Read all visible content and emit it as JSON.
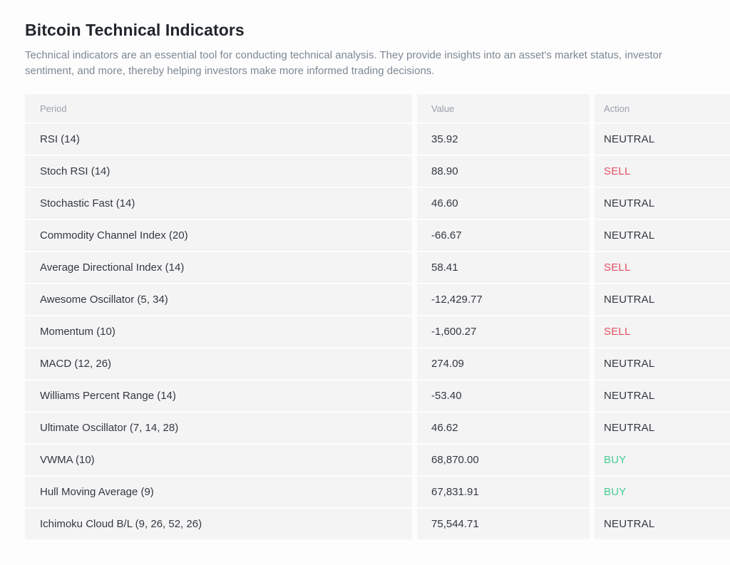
{
  "page": {
    "title": "Bitcoin Technical Indicators",
    "description": "Technical indicators are an essential tool for conducting technical analysis. They provide insights into an asset's market status, investor sentiment, and more, thereby helping investors make more informed trading decisions."
  },
  "table": {
    "columns": [
      "Period",
      "Value",
      "Action"
    ],
    "rows": [
      {
        "period": "RSI (14)",
        "value": "35.92",
        "action": "NEUTRAL"
      },
      {
        "period": "Stoch RSI (14)",
        "value": "88.90",
        "action": "SELL"
      },
      {
        "period": "Stochastic Fast (14)",
        "value": "46.60",
        "action": "NEUTRAL"
      },
      {
        "period": "Commodity Channel Index (20)",
        "value": "-66.67",
        "action": "NEUTRAL"
      },
      {
        "period": "Average Directional Index (14)",
        "value": "58.41",
        "action": "SELL"
      },
      {
        "period": "Awesome Oscillator (5, 34)",
        "value": "-12,429.77",
        "action": "NEUTRAL"
      },
      {
        "period": "Momentum (10)",
        "value": "-1,600.27",
        "action": "SELL"
      },
      {
        "period": "MACD (12, 26)",
        "value": "274.09",
        "action": "NEUTRAL"
      },
      {
        "period": "Williams Percent Range (14)",
        "value": "-53.40",
        "action": "NEUTRAL"
      },
      {
        "period": "Ultimate Oscillator (7, 14, 28)",
        "value": "46.62",
        "action": "NEUTRAL"
      },
      {
        "period": "VWMA (10)",
        "value": "68,870.00",
        "action": "BUY"
      },
      {
        "period": "Hull Moving Average (9)",
        "value": "67,831.91",
        "action": "BUY"
      },
      {
        "period": "Ichimoku Cloud B/L (9, 26, 52, 26)",
        "value": "75,544.71",
        "action": "NEUTRAL"
      }
    ]
  },
  "colors": {
    "buy": "#47cb92",
    "sell": "#e6505f",
    "neutral": "#33393f"
  }
}
